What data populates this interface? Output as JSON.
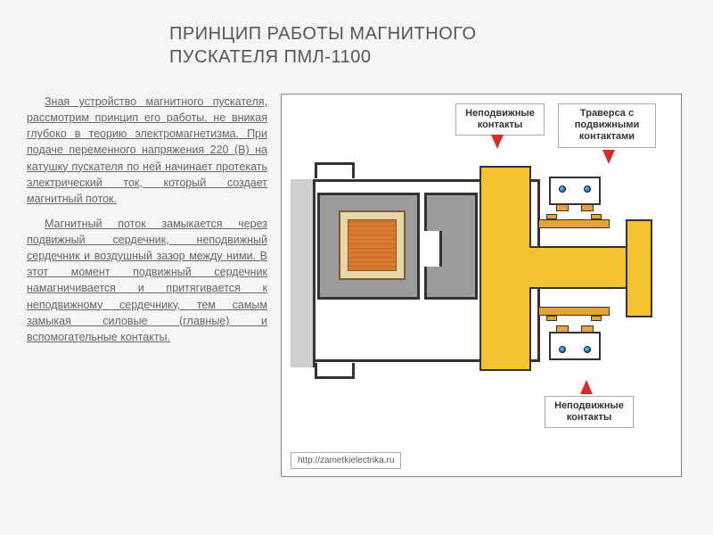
{
  "title_line1": "ПРИНЦИП РАБОТЫ МАГНИТНОГО",
  "title_line2": "ПУСКАТЕЛЯ ПМЛ-1100",
  "para1": "Зная устройство магнитного пускателя, рассмотрим принцип его работы, не вникая глубоко в теорию электромагнетизма. При подаче переменного напряжения 220 (В) на катушку пускателя по ней начинает протекать электрический ток, который создает магнитный поток.",
  "para2": "Магнитный поток замыкается через подвижный сердечник, неподвижный сердечник и воздушный зазор между ними. В этот момент подвижный сердечник намагничивается и притягивается к неподвижному сердечнику, тем самым замыкая силовые (главные) и вспомогательные контакты.",
  "callouts": {
    "fixed_contacts": "Неподвижные контакты",
    "traverse": "Траверса с подвижными контактами",
    "fixed_contacts2": "Неподвижные контакты"
  },
  "url": "http://zametkielectrika.ru",
  "colors": {
    "arrow": "#d92b2b",
    "traverse_fill": "#f4c430",
    "core_fill": "#9c9c9c",
    "coil_wire": "#d97b2f",
    "bolt": "#0a5aa0",
    "contact_pad": "#e8a23a",
    "bg": "#f5f5f5"
  },
  "diagram": {
    "type": "infographic",
    "description": "cross-section of magnetic starter PML-1100",
    "components": [
      {
        "name": "housing",
        "stroke": "#333",
        "fill": "#ffffff"
      },
      {
        "name": "fixed-core",
        "fill": "#9c9c9c"
      },
      {
        "name": "coil",
        "fill": "#d97b2f",
        "frame": "#e8d6a8"
      },
      {
        "name": "moving-core",
        "fill": "#9c9c9c"
      },
      {
        "name": "traverse",
        "fill": "#f4c430"
      },
      {
        "name": "fixed-contact-top",
        "bolts": 2,
        "pads": 2
      },
      {
        "name": "fixed-contact-bottom",
        "bolts": 2,
        "pads": 2
      },
      {
        "name": "moving-contact-top"
      },
      {
        "name": "moving-contact-bottom"
      }
    ],
    "arrows": [
      {
        "from": "callout1",
        "dir": "down",
        "color": "#d92b2b"
      },
      {
        "from": "callout2",
        "dir": "down",
        "color": "#d92b2b"
      },
      {
        "from": "callout3",
        "dir": "up",
        "color": "#d92b2b"
      }
    ]
  }
}
